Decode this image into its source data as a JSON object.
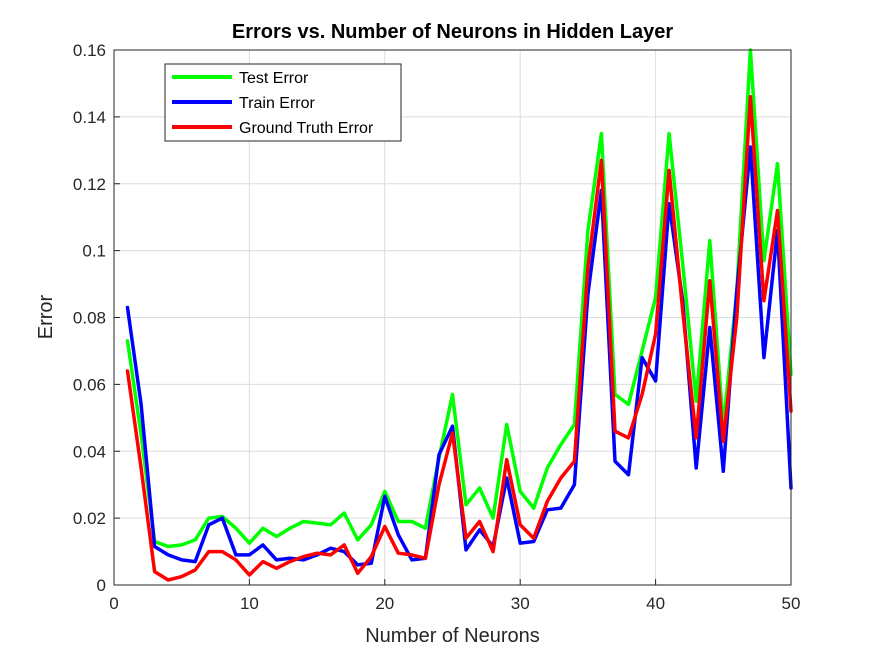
{
  "chart_data": {
    "type": "line",
    "title": "Errors vs. Number of Neurons in Hidden Layer",
    "xlabel": "Number of Neurons",
    "ylabel": "Error",
    "xlim": [
      0,
      50
    ],
    "ylim": [
      0,
      0.16
    ],
    "xticks": [
      "0",
      "10",
      "20",
      "30",
      "40",
      "50"
    ],
    "yticks": [
      "0",
      "0.02",
      "0.04",
      "0.06",
      "0.08",
      "0.1",
      "0.12",
      "0.14",
      "0.16"
    ],
    "grid": true,
    "legend_position": "top-left",
    "x": [
      1,
      2,
      3,
      4,
      5,
      6,
      7,
      8,
      9,
      10,
      11,
      12,
      13,
      14,
      15,
      16,
      17,
      18,
      19,
      20,
      21,
      22,
      23,
      24,
      25,
      26,
      27,
      28,
      29,
      30,
      31,
      32,
      33,
      34,
      35,
      36,
      37,
      38,
      39,
      40,
      41,
      42,
      43,
      44,
      45,
      46,
      47,
      48,
      49,
      50
    ],
    "series": [
      {
        "name": "Test Error",
        "color": "#00ff00",
        "values": [
          0.073,
          0.045,
          0.013,
          0.0115,
          0.012,
          0.0135,
          0.02,
          0.0205,
          0.017,
          0.0125,
          0.017,
          0.0145,
          0.017,
          0.019,
          0.0185,
          0.018,
          0.0215,
          0.0135,
          0.018,
          0.028,
          0.019,
          0.019,
          0.017,
          0.038,
          0.057,
          0.024,
          0.029,
          0.02,
          0.048,
          0.028,
          0.023,
          0.035,
          0.042,
          0.048,
          0.106,
          0.135,
          0.057,
          0.054,
          0.07,
          0.086,
          0.135,
          0.096,
          0.055,
          0.103,
          0.047,
          0.088,
          0.16,
          0.097,
          0.126,
          0.063
        ]
      },
      {
        "name": "Train Error",
        "color": "#0000ff",
        "values": [
          0.083,
          0.054,
          0.0115,
          0.009,
          0.0075,
          0.007,
          0.018,
          0.02,
          0.009,
          0.009,
          0.012,
          0.0075,
          0.008,
          0.0075,
          0.009,
          0.011,
          0.01,
          0.006,
          0.0065,
          0.0265,
          0.015,
          0.0075,
          0.008,
          0.039,
          0.0475,
          0.0105,
          0.0165,
          0.0115,
          0.032,
          0.0125,
          0.013,
          0.0225,
          0.023,
          0.03,
          0.087,
          0.118,
          0.037,
          0.033,
          0.068,
          0.061,
          0.114,
          0.085,
          0.035,
          0.077,
          0.034,
          0.088,
          0.131,
          0.068,
          0.106,
          0.029
        ]
      },
      {
        "name": "Ground Truth Error",
        "color": "#ff0000",
        "values": [
          0.064,
          0.035,
          0.004,
          0.0015,
          0.0025,
          0.0045,
          0.01,
          0.01,
          0.0075,
          0.003,
          0.007,
          0.005,
          0.007,
          0.0085,
          0.0095,
          0.009,
          0.012,
          0.0035,
          0.0085,
          0.0175,
          0.0095,
          0.009,
          0.008,
          0.03,
          0.0455,
          0.014,
          0.019,
          0.01,
          0.0375,
          0.018,
          0.014,
          0.025,
          0.032,
          0.037,
          0.095,
          0.127,
          0.046,
          0.044,
          0.057,
          0.075,
          0.124,
          0.082,
          0.044,
          0.091,
          0.043,
          0.08,
          0.146,
          0.085,
          0.112,
          0.052
        ]
      }
    ]
  }
}
